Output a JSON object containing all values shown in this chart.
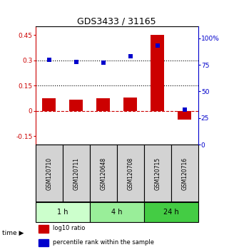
{
  "title": "GDS3433 / 31165",
  "samples": [
    "GSM120710",
    "GSM120711",
    "GSM120648",
    "GSM120708",
    "GSM120715",
    "GSM120716"
  ],
  "log10_ratio": [
    0.075,
    0.065,
    0.075,
    0.08,
    0.45,
    -0.05
  ],
  "percentile_rank": [
    80,
    78,
    77,
    83,
    93,
    33
  ],
  "ylim_left": [
    -0.2,
    0.5
  ],
  "ylim_right": [
    0,
    111
  ],
  "yticks_left": [
    -0.15,
    0.0,
    0.15,
    0.3,
    0.45
  ],
  "yticks_right": [
    0,
    25,
    50,
    75,
    100
  ],
  "ytick_labels_left": [
    "-0.15",
    "0",
    "0.15",
    "0.3",
    "0.45"
  ],
  "ytick_labels_right": [
    "0",
    "25",
    "50",
    "75",
    "100%"
  ],
  "bar_color": "#cc0000",
  "scatter_color": "#0000cc",
  "hline_y1": 0.3,
  "hline_y2": 0.15,
  "hline_color": "black",
  "zero_line_color": "#cc0000",
  "time_groups": [
    {
      "label": "1 h",
      "indices": [
        0,
        1
      ],
      "color": "#ccffcc"
    },
    {
      "label": "4 h",
      "indices": [
        2,
        3
      ],
      "color": "#99ee99"
    },
    {
      "label": "24 h",
      "indices": [
        4,
        5
      ],
      "color": "#44cc44"
    }
  ],
  "legend_entries": [
    {
      "color": "#cc0000",
      "label": "log10 ratio"
    },
    {
      "color": "#0000cc",
      "label": "percentile rank within the sample"
    }
  ],
  "bar_width": 0.5,
  "scatter_marker": "s",
  "scatter_size": 18
}
